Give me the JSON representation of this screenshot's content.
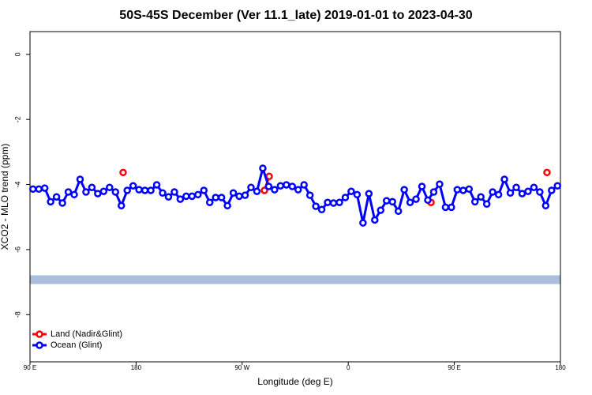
{
  "chart_data": {
    "type": "line",
    "title": "50S-45S December (Ver 11.1_late)   2019-01-01 to 2023-04-30",
    "x_label": "Longitude (deg E)",
    "y_label": "XCO2 - MLO trend (ppm)",
    "xlim": [
      90,
      540
    ],
    "ylim": [
      -9.45,
      0.7
    ],
    "xticks": [
      {
        "value": 90,
        "label": "90 E"
      },
      180,
      {
        "value": 270,
        "label": "90 W"
      },
      {
        "value": 360,
        "label": "0"
      },
      {
        "value": 450,
        "label": "90 E"
      },
      {
        "value": 540,
        "label": "180"
      }
    ],
    "yticks": [
      0,
      -2,
      -4,
      -6,
      -8
    ],
    "band": {
      "range": [
        -7.06,
        -6.79
      ],
      "color": "#a9bfdc"
    },
    "legend": "bottom-left",
    "series": [
      {
        "name": "Land (Nadir&Glint)",
        "color": "#ff0000",
        "x": [
          169.0,
          288.9,
          292.9,
          430.2,
          528.6
        ],
        "values": [
          -3.63,
          -4.18,
          -3.75,
          -4.55,
          -3.63
        ]
      },
      {
        "name": "Ocean (Glint)",
        "color": "#0000ff",
        "x": [
          92.5,
          97.5,
          102.5,
          107.5,
          112.5,
          117.5,
          122.5,
          127.5,
          132.5,
          137.5,
          142.5,
          147.5,
          152.5,
          157.5,
          162.5,
          167.5,
          172.5,
          177.5,
          182.5,
          187.5,
          192.5,
          197.5,
          202.5,
          207.5,
          212.5,
          217.5,
          222.5,
          227.5,
          232.5,
          237.5,
          242.5,
          247.5,
          252.5,
          257.5,
          262.5,
          267.5,
          272.5,
          277.5,
          282.5,
          287.5,
          292.5,
          297.5,
          302.5,
          307.5,
          312.5,
          317.5,
          322.5,
          327.5,
          332.5,
          337.5,
          342.5,
          347.5,
          352.5,
          357.5,
          362.5,
          367.5,
          372.5,
          377.5,
          382.5,
          387.5,
          392.5,
          397.5,
          402.5,
          407.5,
          412.5,
          417.5,
          422.5,
          427.5,
          432.5,
          437.5,
          442.5,
          447.5,
          452.5,
          457.5,
          462.5,
          467.5,
          472.5,
          477.5,
          482.5,
          487.5,
          492.5,
          497.5,
          502.5,
          507.5,
          512.5,
          517.5,
          522.5,
          527.5,
          532.5,
          537.5
        ],
        "values": [
          -4.14,
          -4.14,
          -4.11,
          -4.53,
          -4.38,
          -4.57,
          -4.23,
          -4.31,
          -3.84,
          -4.23,
          -4.09,
          -4.28,
          -4.21,
          -4.09,
          -4.23,
          -4.65,
          -4.18,
          -4.04,
          -4.16,
          -4.18,
          -4.18,
          -4.01,
          -4.26,
          -4.38,
          -4.23,
          -4.45,
          -4.36,
          -4.36,
          -4.31,
          -4.18,
          -4.55,
          -4.4,
          -4.4,
          -4.65,
          -4.26,
          -4.36,
          -4.33,
          -4.09,
          -4.21,
          -3.5,
          -4.06,
          -4.16,
          -4.04,
          -4.01,
          -4.06,
          -4.16,
          -4.01,
          -4.33,
          -4.67,
          -4.77,
          -4.55,
          -4.57,
          -4.55,
          -4.4,
          -4.21,
          -4.31,
          -5.18,
          -4.28,
          -5.09,
          -4.79,
          -4.5,
          -4.53,
          -4.82,
          -4.16,
          -4.55,
          -4.45,
          -4.06,
          -4.48,
          -4.23,
          -3.99,
          -4.7,
          -4.7,
          -4.16,
          -4.18,
          -4.14,
          -4.53,
          -4.38,
          -4.6,
          -4.23,
          -4.31,
          -3.84,
          -4.26,
          -4.09,
          -4.28,
          -4.21,
          -4.09,
          -4.23,
          -4.65,
          -4.18,
          -4.04
        ]
      }
    ]
  }
}
